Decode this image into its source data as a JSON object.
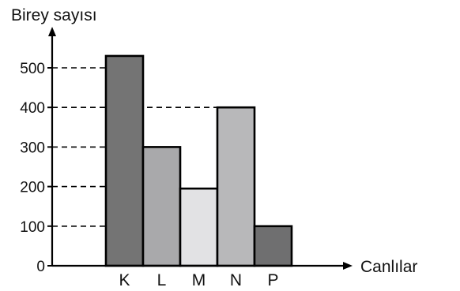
{
  "chart_data": {
    "type": "bar",
    "ylabel": "Birey sayısı",
    "xlabel": "Canlılar",
    "categories": [
      "K",
      "L",
      "M",
      "N",
      "P"
    ],
    "values": [
      530,
      300,
      195,
      400,
      100
    ],
    "y_ticks": [
      0,
      100,
      200,
      300,
      400,
      500
    ],
    "ylim": [
      0,
      600
    ],
    "dashed_reference_lines": [
      100,
      200,
      300,
      400,
      500
    ],
    "bar_colors": [
      "#747474",
      "#a9a9ab",
      "#e2e2e4",
      "#b8b8ba",
      "#6f6f70"
    ],
    "bar_outline_color": "#000000",
    "grid": false,
    "legend": false
  }
}
